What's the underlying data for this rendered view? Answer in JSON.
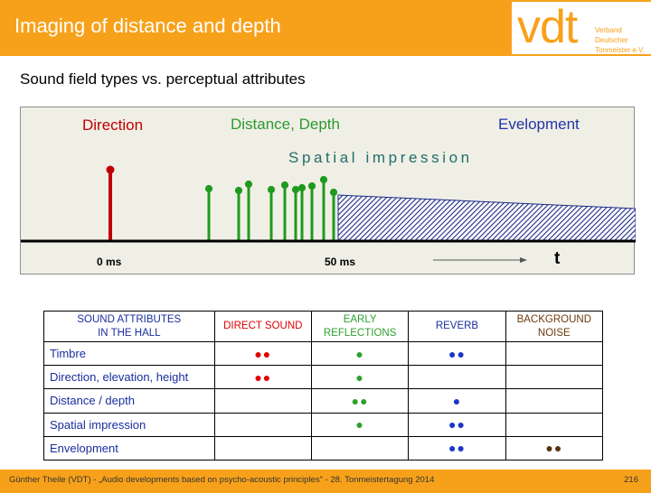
{
  "header": {
    "title": "Imaging of distance and depth",
    "logo_text": "vdt",
    "logo_sub_1": "Verband Deutscher",
    "logo_sub_2": "Tonmeister e.V."
  },
  "subtitle": "Sound field types vs. perceptual attributes",
  "diagram": {
    "label_direction": "Direction",
    "label_distance": "Distance, Depth",
    "label_envelopment": "Evelopment",
    "label_spatial": "Spatial impression",
    "label_0ms": "0 ms",
    "label_50ms": "50 ms",
    "label_t": "t",
    "colors": {
      "direct": "#c00000",
      "early": "#1f9a1f",
      "reverb_fill": "#1c2a88",
      "background": "#f0efe6"
    }
  },
  "table": {
    "headers": [
      {
        "line1": "SOUND ATTRIBUTES",
        "line2": "IN THE HALL"
      },
      {
        "line1": "DIRECT SOUND",
        "line2": ""
      },
      {
        "line1": "EARLY",
        "line2": "REFLECTIONS"
      },
      {
        "line1": "REVERB",
        "line2": ""
      },
      {
        "line1": "BACKGROUND",
        "line2": "NOISE"
      }
    ],
    "rows": [
      {
        "label": "Timbre",
        "direct": "●●",
        "early": "●",
        "reverb": "●●",
        "noise": ""
      },
      {
        "label": "Direction, elevation, height",
        "direct": "●●",
        "early": "●",
        "reverb": "",
        "noise": ""
      },
      {
        "label": "Distance / depth",
        "direct": "",
        "early": "●●",
        "reverb": "●",
        "noise": ""
      },
      {
        "label": "Spatial impression",
        "direct": "",
        "early": "●",
        "reverb": "●●",
        "noise": ""
      },
      {
        "label": "Envelopment",
        "direct": "",
        "early": "",
        "reverb": "●●",
        "noise": "●●"
      }
    ]
  },
  "footer": {
    "text": "Günther Theile  (VDT)   -   „Audio developments based on psycho-acoustic principles\"    -    28. Tonmeistertagung 2014",
    "page": "216"
  }
}
